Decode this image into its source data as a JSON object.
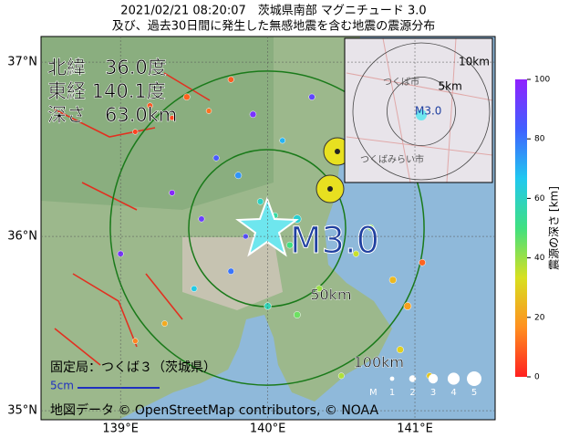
{
  "title": [
    "2021/02/21 08:20:07　茨城県南部 マグニチュード 3.0",
    "及び、過去30日間に発生した無感地震を含む地震の震源分布"
  ],
  "map": {
    "lonlim": [
      138.46,
      141.545
    ],
    "latlim": [
      34.948,
      37.147
    ],
    "lat_ticks": [
      {
        "value": 37,
        "label": "37°N"
      },
      {
        "value": 36,
        "label": "36°N"
      },
      {
        "value": 35,
        "label": "35°N"
      }
    ],
    "lon_ticks": [
      {
        "value": 139,
        "label": "139°E"
      },
      {
        "value": 140,
        "label": "140°E"
      },
      {
        "value": 141,
        "label": "141°E"
      }
    ],
    "info": [
      "北緯　36.0度",
      "東経 140.1度",
      "深さ　63.0km"
    ],
    "mag_label": "M3.0",
    "rings": [
      {
        "value": 50,
        "label": "50km"
      },
      {
        "value": 100,
        "label": "100km"
      }
    ],
    "station": "固定局：つくば３（茨城県）",
    "scale_label": "5cm",
    "attribution": "地図データ © OpenStreetMap contributors, © NOAA",
    "events": [
      {
        "lon": 139.2,
        "lat": 36.75,
        "depth": 8,
        "mag": 1.5
      },
      {
        "lon": 139.35,
        "lat": 36.68,
        "depth": 6,
        "mag": 1.2
      },
      {
        "lon": 139.45,
        "lat": 36.8,
        "depth": 10,
        "mag": 1.8
      },
      {
        "lon": 139.1,
        "lat": 36.6,
        "depth": 5,
        "mag": 1.3
      },
      {
        "lon": 139.6,
        "lat": 36.72,
        "depth": 12,
        "mag": 1.4
      },
      {
        "lon": 139.75,
        "lat": 36.9,
        "depth": 9,
        "mag": 1.6
      },
      {
        "lon": 139.9,
        "lat": 36.7,
        "depth": 95,
        "mag": 1.8
      },
      {
        "lon": 140.1,
        "lat": 36.55,
        "depth": 70,
        "mag": 1.5
      },
      {
        "lon": 140.3,
        "lat": 36.8,
        "depth": 90,
        "mag": 1.7
      },
      {
        "lon": 139.65,
        "lat": 36.45,
        "depth": 85,
        "mag": 1.6
      },
      {
        "lon": 139.8,
        "lat": 36.35,
        "depth": 75,
        "mag": 1.9
      },
      {
        "lon": 139.95,
        "lat": 36.2,
        "depth": 60,
        "mag": 1.7
      },
      {
        "lon": 140.05,
        "lat": 36.12,
        "depth": 55,
        "mag": 1.5
      },
      {
        "lon": 140.15,
        "lat": 35.95,
        "depth": 50,
        "mag": 1.8
      },
      {
        "lon": 139.85,
        "lat": 36.0,
        "depth": 88,
        "mag": 1.4
      },
      {
        "lon": 139.55,
        "lat": 36.1,
        "depth": 92,
        "mag": 1.6
      },
      {
        "lon": 139.35,
        "lat": 36.25,
        "depth": 98,
        "mag": 1.5
      },
      {
        "lon": 139.5,
        "lat": 35.7,
        "depth": 65,
        "mag": 1.6
      },
      {
        "lon": 139.75,
        "lat": 35.8,
        "depth": 80,
        "mag": 1.7
      },
      {
        "lon": 140.0,
        "lat": 35.6,
        "depth": 58,
        "mag": 2.0
      },
      {
        "lon": 140.2,
        "lat": 35.55,
        "depth": 45,
        "mag": 1.9
      },
      {
        "lon": 140.35,
        "lat": 35.7,
        "depth": 40,
        "mag": 1.8
      },
      {
        "lon": 140.6,
        "lat": 35.9,
        "depth": 35,
        "mag": 1.6
      },
      {
        "lon": 140.45,
        "lat": 36.3,
        "depth": 48,
        "mag": 1.7
      },
      {
        "lon": 140.7,
        "lat": 36.05,
        "depth": 42,
        "mag": 1.8
      },
      {
        "lon": 140.85,
        "lat": 35.75,
        "depth": 25,
        "mag": 2.0
      },
      {
        "lon": 140.95,
        "lat": 35.6,
        "depth": 20,
        "mag": 2.2
      },
      {
        "lon": 141.05,
        "lat": 35.85,
        "depth": 10,
        "mag": 1.8
      },
      {
        "lon": 140.9,
        "lat": 35.35,
        "depth": 30,
        "mag": 1.9
      },
      {
        "lon": 141.1,
        "lat": 35.2,
        "depth": 28,
        "mag": 1.7
      },
      {
        "lon": 140.5,
        "lat": 35.2,
        "depth": 38,
        "mag": 1.6
      },
      {
        "lon": 139.3,
        "lat": 35.5,
        "depth": 22,
        "mag": 1.5
      },
      {
        "lon": 139.1,
        "lat": 35.4,
        "depth": 15,
        "mag": 1.4
      },
      {
        "lon": 139.0,
        "lat": 35.9,
        "depth": 95,
        "mag": 1.6
      },
      {
        "lon": 140.2,
        "lat": 36.1,
        "depth": 62,
        "mag": 2.4
      },
      {
        "lon": 141.2,
        "lat": 36.35,
        "depth": 30,
        "mag": 1.7
      }
    ]
  },
  "inset": {
    "rings": [
      {
        "value": 5,
        "label": "5km"
      },
      {
        "value": 10,
        "label": "10km"
      }
    ],
    "places": [
      "つくば市",
      "つくばみらい市"
    ],
    "mag_label": "M3.0"
  },
  "colorbar": {
    "label": "震源の深さ [km]",
    "lim": [
      0,
      100
    ],
    "ticks": [
      0,
      20,
      40,
      60,
      80,
      100
    ],
    "colors": [
      "#ff2020",
      "#ff9020",
      "#d8e020",
      "#40e080",
      "#20c8f0",
      "#4060ff",
      "#9020ff"
    ]
  },
  "mag_legend": {
    "label": "M",
    "ticks": [
      1,
      2,
      3,
      4,
      5
    ]
  }
}
